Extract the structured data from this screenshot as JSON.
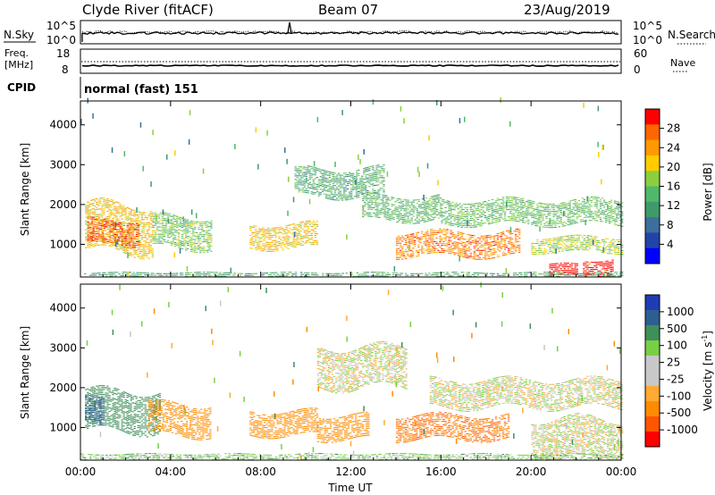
{
  "header": {
    "station": "Clyde River (fitACF)",
    "beam": "Beam 07",
    "date": "23/Aug/2019"
  },
  "noise_panel": {
    "left_label": "N.Sky",
    "right_label": "N.Search",
    "left_ticks": [
      "10^5",
      "10^0"
    ],
    "right_ticks": [
      "10^5",
      "10^0"
    ]
  },
  "freq_panel": {
    "left_label_1": "Freq.",
    "left_label_2": "[MHz]",
    "left_ticks": [
      "18",
      "8"
    ],
    "right_label": "Nave",
    "right_ticks": [
      "60",
      "0"
    ]
  },
  "cpid": {
    "label": "CPID",
    "program": "normal (fast) 151"
  },
  "colors": {
    "power_scale": [
      "#0000ff",
      "#2244aa",
      "#3c6f9c",
      "#3f9a6a",
      "#4fb86a",
      "#8ccf3e",
      "#ffcc00",
      "#ff9900",
      "#ff6600",
      "#ff0000"
    ],
    "velocity_scale": [
      "#ff0000",
      "#ff5500",
      "#ff8c00",
      "#ffaa33",
      "#c8c8c8",
      "#c8c8c8",
      "#77d044",
      "#3f8f5a",
      "#2c5f8f",
      "#1e3cb4"
    ]
  },
  "chart_data": [
    {
      "type": "heatmap",
      "panel": "power",
      "ylabel": "Slant Range [km]",
      "ylim": [
        180,
        4600
      ],
      "yticks": [
        "1000",
        "2000",
        "3000",
        "4000"
      ],
      "xlim": [
        "00:00",
        "24:00"
      ],
      "colorbar_label": "Power [dB]",
      "colorbar_ticks": [
        "4",
        "8",
        "12",
        "16",
        "20",
        "24",
        "28"
      ],
      "colorbar_range": [
        0,
        30
      ],
      "echo_regions": [
        {
          "t_start": 0.2,
          "t_end": 3.2,
          "range_low": 800,
          "range_high": 2000,
          "power": 20
        },
        {
          "t_start": 0.3,
          "t_end": 2.6,
          "range_low": 1000,
          "range_high": 1600,
          "power": 26
        },
        {
          "t_start": 3.2,
          "t_end": 5.8,
          "range_low": 900,
          "range_high": 1700,
          "power": 15
        },
        {
          "t_start": 7.5,
          "t_end": 10.5,
          "range_low": 900,
          "range_high": 1500,
          "power": 20
        },
        {
          "t_start": 9.5,
          "t_end": 13.5,
          "range_low": 2200,
          "range_high": 2900,
          "power": 12
        },
        {
          "t_start": 12.5,
          "t_end": 16.0,
          "range_low": 1600,
          "range_high": 2200,
          "power": 13
        },
        {
          "t_start": 14.0,
          "t_end": 19.5,
          "range_low": 700,
          "range_high": 1300,
          "power": 24
        },
        {
          "t_start": 16.0,
          "t_end": 24.0,
          "range_low": 1500,
          "range_high": 2100,
          "power": 14
        },
        {
          "t_start": 20.0,
          "t_end": 24.0,
          "range_low": 800,
          "range_high": 1200,
          "power": 17
        },
        {
          "t_start": 20.8,
          "t_end": 22.0,
          "range_low": 200,
          "range_high": 500,
          "power": 30
        },
        {
          "t_start": 22.3,
          "t_end": 23.6,
          "range_low": 200,
          "range_high": 650,
          "power": 30
        },
        {
          "t_start": 0.0,
          "t_end": 24.0,
          "range_low": 180,
          "range_high": 300,
          "power": 12
        }
      ]
    },
    {
      "type": "heatmap",
      "panel": "velocity",
      "ylabel": "Slant Range [km]",
      "ylim": [
        180,
        4600
      ],
      "yticks": [
        "1000",
        "2000",
        "3000",
        "4000"
      ],
      "xlabel": "Time UT",
      "xticks": [
        "00:00",
        "04:00",
        "08:00",
        "12:00",
        "16:00",
        "20:00",
        "00:00"
      ],
      "xlim": [
        "00:00",
        "24:00"
      ],
      "colorbar_label_main": "Velocity",
      "colorbar_label_units": "[m s",
      "colorbar_label_exp": "-1",
      "colorbar_label_close": "]",
      "colorbar_ticks": [
        "1000",
        "500",
        "100",
        "25",
        "-25",
        "-100",
        "-500",
        "-1000"
      ],
      "echo_regions": [
        {
          "t_start": 0.2,
          "t_end": 3.5,
          "range_low": 900,
          "range_high": 1900,
          "velocity": 300
        },
        {
          "t_start": 0.2,
          "t_end": 1.0,
          "range_low": 1000,
          "range_high": 1700,
          "velocity": 800
        },
        {
          "t_start": 3.0,
          "t_end": 5.8,
          "range_low": 800,
          "range_high": 1600,
          "velocity": -200
        },
        {
          "t_start": 7.5,
          "t_end": 10.5,
          "range_low": 800,
          "range_high": 1400,
          "velocity": -200
        },
        {
          "t_start": 10.5,
          "t_end": 14.5,
          "range_low": 2000,
          "range_high": 3000,
          "velocity": 0
        },
        {
          "t_start": 10.5,
          "t_end": 12.8,
          "range_low": 700,
          "range_high": 1300,
          "velocity": -300
        },
        {
          "t_start": 14.0,
          "t_end": 19.0,
          "range_low": 700,
          "range_high": 1300,
          "velocity": -500
        },
        {
          "t_start": 15.5,
          "t_end": 24.0,
          "range_low": 1500,
          "range_high": 2200,
          "velocity": 0
        },
        {
          "t_start": 20.0,
          "t_end": 24.0,
          "range_low": 200,
          "range_high": 1200,
          "velocity": 0
        },
        {
          "t_start": 0.0,
          "t_end": 24.0,
          "range_low": 180,
          "range_high": 320,
          "velocity": 60
        }
      ]
    }
  ]
}
